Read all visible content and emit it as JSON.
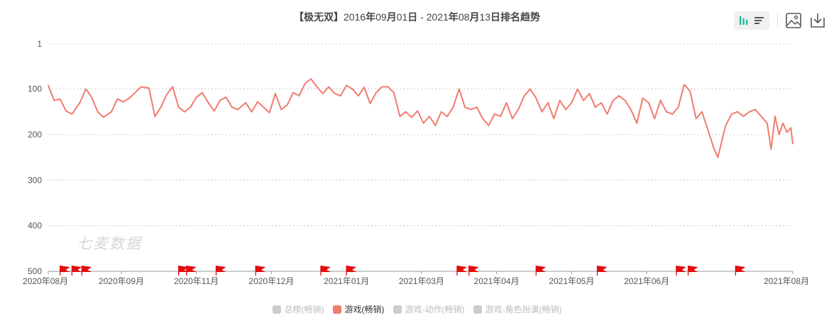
{
  "title": {
    "game": "【极无双】",
    "start_year": "2016",
    "start_month": "09",
    "start_day": "01",
    "separator": " - ",
    "end_year": "2021",
    "end_month": "08",
    "end_day": "13",
    "suffix": "排名趋势",
    "u_year": "年",
    "u_month": "月",
    "u_day": "日"
  },
  "watermark": "七麦数据",
  "colors": {
    "series": "#f07c6e",
    "flag": "#e10e0e",
    "grid": "#cccccc",
    "inactive": "#cccccc",
    "accent": "#1bb394"
  },
  "toolbar": {
    "icons": [
      "bar-chart-icon",
      "list-view-icon",
      "image-icon",
      "download-icon"
    ]
  },
  "legend": [
    {
      "label": "总榜(畅销)",
      "active": false
    },
    {
      "label": "游戏(畅销)",
      "active": true
    },
    {
      "label": "游戏-动作(畅销)",
      "active": false
    },
    {
      "label": "游戏-角色扮演(畅销)",
      "active": false
    }
  ],
  "chart_data": {
    "type": "line",
    "title": "【极无双】2016年09月01日 - 2021年08月13日排名趋势",
    "y_axis": {
      "ticks": [
        "1",
        "100",
        "200",
        "300",
        "400",
        "500"
      ],
      "range": [
        1,
        500
      ],
      "inverted": true
    },
    "x_axis": {
      "range": [
        "2020-08-01",
        "2021-08-13"
      ],
      "tick_labels": [
        "2020年08月",
        "2020年09月",
        "2020年11月",
        "2020年12月",
        "2021年01月",
        "2021年03月",
        "2021年04月",
        "2021年05月",
        "2021年06月",
        "2021年08月"
      ],
      "tick_dates": [
        "2020-08-01",
        "2020-09-07",
        "2020-10-15",
        "2020-11-22",
        "2020-12-30",
        "2021-02-06",
        "2021-03-16",
        "2021-04-23",
        "2021-05-31",
        "2021-08-13"
      ]
    },
    "grid": true,
    "legend_position": "bottom",
    "series": [
      {
        "name": "游戏(畅销)",
        "color": "#f07c6e",
        "points": [
          [
            "2020-08-01",
            92
          ],
          [
            "2020-08-04",
            125
          ],
          [
            "2020-08-07",
            122
          ],
          [
            "2020-08-10",
            148
          ],
          [
            "2020-08-13",
            155
          ],
          [
            "2020-08-17",
            130
          ],
          [
            "2020-08-20",
            100
          ],
          [
            "2020-08-23",
            118
          ],
          [
            "2020-08-26",
            150
          ],
          [
            "2020-08-29",
            162
          ],
          [
            "2020-09-02",
            150
          ],
          [
            "2020-09-05",
            122
          ],
          [
            "2020-09-08",
            128
          ],
          [
            "2020-09-11",
            120
          ],
          [
            "2020-09-14",
            108
          ],
          [
            "2020-09-17",
            95
          ],
          [
            "2020-09-21",
            98
          ],
          [
            "2020-09-24",
            160
          ],
          [
            "2020-09-27",
            140
          ],
          [
            "2020-09-30",
            112
          ],
          [
            "2020-10-03",
            95
          ],
          [
            "2020-10-06",
            140
          ],
          [
            "2020-10-09",
            150
          ],
          [
            "2020-10-12",
            140
          ],
          [
            "2020-10-15",
            118
          ],
          [
            "2020-10-18",
            108
          ],
          [
            "2020-10-21",
            130
          ],
          [
            "2020-10-24",
            148
          ],
          [
            "2020-10-27",
            125
          ],
          [
            "2020-10-30",
            118
          ],
          [
            "2020-11-02",
            140
          ],
          [
            "2020-11-05",
            145
          ],
          [
            "2020-11-09",
            130
          ],
          [
            "2020-11-12",
            150
          ],
          [
            "2020-11-15",
            128
          ],
          [
            "2020-11-18",
            140
          ],
          [
            "2020-11-21",
            152
          ],
          [
            "2020-11-24",
            110
          ],
          [
            "2020-11-27",
            145
          ],
          [
            "2020-11-30",
            135
          ],
          [
            "2020-12-03",
            108
          ],
          [
            "2020-12-06",
            115
          ],
          [
            "2020-12-09",
            88
          ],
          [
            "2020-12-12",
            78
          ],
          [
            "2020-12-15",
            95
          ],
          [
            "2020-12-18",
            110
          ],
          [
            "2020-12-21",
            95
          ],
          [
            "2020-12-24",
            110
          ],
          [
            "2020-12-27",
            115
          ],
          [
            "2020-12-30",
            92
          ],
          [
            "2021-01-02",
            100
          ],
          [
            "2021-01-05",
            115
          ],
          [
            "2021-01-08",
            96
          ],
          [
            "2021-01-11",
            132
          ],
          [
            "2021-01-14",
            108
          ],
          [
            "2021-01-17",
            95
          ],
          [
            "2021-01-20",
            95
          ],
          [
            "2021-01-23",
            108
          ],
          [
            "2021-01-26",
            160
          ],
          [
            "2021-01-29",
            150
          ],
          [
            "2021-02-01",
            162
          ],
          [
            "2021-02-04",
            148
          ],
          [
            "2021-02-07",
            175
          ],
          [
            "2021-02-10",
            160
          ],
          [
            "2021-02-13",
            180
          ],
          [
            "2021-02-16",
            150
          ],
          [
            "2021-02-19",
            160
          ],
          [
            "2021-02-22",
            140
          ],
          [
            "2021-02-25",
            100
          ],
          [
            "2021-02-28",
            140
          ],
          [
            "2021-03-03",
            145
          ],
          [
            "2021-03-06",
            140
          ],
          [
            "2021-03-09",
            165
          ],
          [
            "2021-03-12",
            180
          ],
          [
            "2021-03-15",
            155
          ],
          [
            "2021-03-18",
            160
          ],
          [
            "2021-03-21",
            130
          ],
          [
            "2021-03-24",
            165
          ],
          [
            "2021-03-27",
            145
          ],
          [
            "2021-03-30",
            115
          ],
          [
            "2021-04-02",
            100
          ],
          [
            "2021-04-05",
            120
          ],
          [
            "2021-04-08",
            150
          ],
          [
            "2021-04-11",
            130
          ],
          [
            "2021-04-14",
            165
          ],
          [
            "2021-04-17",
            125
          ],
          [
            "2021-04-20",
            145
          ],
          [
            "2021-04-23",
            130
          ],
          [
            "2021-04-26",
            100
          ],
          [
            "2021-04-29",
            125
          ],
          [
            "2021-05-02",
            110
          ],
          [
            "2021-05-05",
            140
          ],
          [
            "2021-05-08",
            130
          ],
          [
            "2021-05-11",
            155
          ],
          [
            "2021-05-14",
            125
          ],
          [
            "2021-05-17",
            115
          ],
          [
            "2021-05-20",
            125
          ],
          [
            "2021-05-23",
            145
          ],
          [
            "2021-05-26",
            175
          ],
          [
            "2021-05-29",
            120
          ],
          [
            "2021-06-01",
            130
          ],
          [
            "2021-06-04",
            165
          ],
          [
            "2021-06-07",
            125
          ],
          [
            "2021-06-10",
            150
          ],
          [
            "2021-06-13",
            155
          ],
          [
            "2021-06-16",
            140
          ],
          [
            "2021-06-19",
            90
          ],
          [
            "2021-06-22",
            105
          ],
          [
            "2021-06-25",
            165
          ],
          [
            "2021-06-28",
            150
          ],
          [
            "2021-07-01",
            190
          ],
          [
            "2021-07-04",
            230
          ],
          [
            "2021-07-06",
            250
          ],
          [
            "2021-07-08",
            215
          ],
          [
            "2021-07-10",
            180
          ],
          [
            "2021-07-13",
            155
          ],
          [
            "2021-07-16",
            150
          ],
          [
            "2021-07-19",
            160
          ],
          [
            "2021-07-22",
            150
          ],
          [
            "2021-07-25",
            145
          ],
          [
            "2021-07-28",
            160
          ],
          [
            "2021-07-31",
            175
          ],
          [
            "2021-08-02",
            232
          ],
          [
            "2021-08-04",
            160
          ],
          [
            "2021-08-06",
            200
          ],
          [
            "2021-08-08",
            175
          ],
          [
            "2021-08-10",
            195
          ],
          [
            "2021-08-12",
            185
          ],
          [
            "2021-08-13",
            220
          ]
        ]
      }
    ],
    "flags": [
      "2020-08-07",
      "2020-08-13",
      "2020-08-18",
      "2020-10-06",
      "2020-10-10",
      "2020-10-25",
      "2020-11-14",
      "2020-12-17",
      "2020-12-30",
      "2021-02-24",
      "2021-03-02",
      "2021-04-05",
      "2021-05-06",
      "2021-06-15",
      "2021-06-21",
      "2021-07-15"
    ]
  }
}
